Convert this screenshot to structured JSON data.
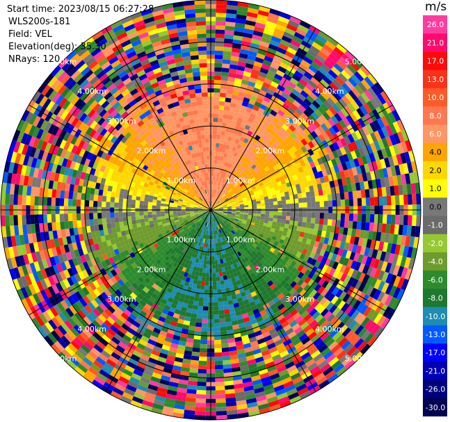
{
  "header": {
    "start_time": "Start time: 2023/08/15 06:27:28",
    "instrument": "WLS200s-181",
    "field": "Field: VEL",
    "elevation": "Elevation(deg): 35.30",
    "nrays": "NRays: 120"
  },
  "colorbar": {
    "unit": "m/s",
    "ticks": [
      "26.0",
      "21.0",
      "17.0",
      "13.0",
      "10.0",
      "8.0",
      "6.0",
      "4.0",
      "2.0",
      "1.0",
      "0.0",
      "-1.0",
      "-2.0",
      "-4.0",
      "-6.0",
      "-8.0",
      "-10.0",
      "-13.0",
      "-17.0",
      "-21.0",
      "-26.0",
      "-30.0"
    ],
    "colors": [
      "#ff3ca0",
      "#ff0a6e",
      "#ff0a0a",
      "#fa3219",
      "#ff5a28",
      "#ff7850",
      "#ff9664",
      "#ffa500",
      "#ffd700",
      "#ffff00",
      "#787878",
      "#6b6b6b",
      "#96c832",
      "#6e9b2d",
      "#2d8b2d",
      "#1e782d",
      "#1e8cb4",
      "#005aff",
      "#0000ff",
      "#0000b4",
      "#00007d",
      "#000050"
    ]
  },
  "chart_data": {
    "type": "heatmap",
    "title": "",
    "field": "VEL",
    "nrays": 120,
    "range_ring_km": [
      1.0,
      2.0,
      3.0,
      4.0,
      5.0
    ],
    "range_labels": [
      "1.00km",
      "2.00km",
      "3.00km",
      "4.00km",
      "5.00km"
    ],
    "max_range_km": 5.0,
    "grid": true,
    "colorbar_unit": "m/s",
    "colorbar_min": -30.0,
    "colorbar_max": 26.0,
    "velocity_pattern": {
      "positive_sector": "north",
      "negative_sector": "south",
      "zero_axis": "east-west",
      "clean_range_km": 2.6,
      "noise_beyond": "outer rings random"
    }
  }
}
